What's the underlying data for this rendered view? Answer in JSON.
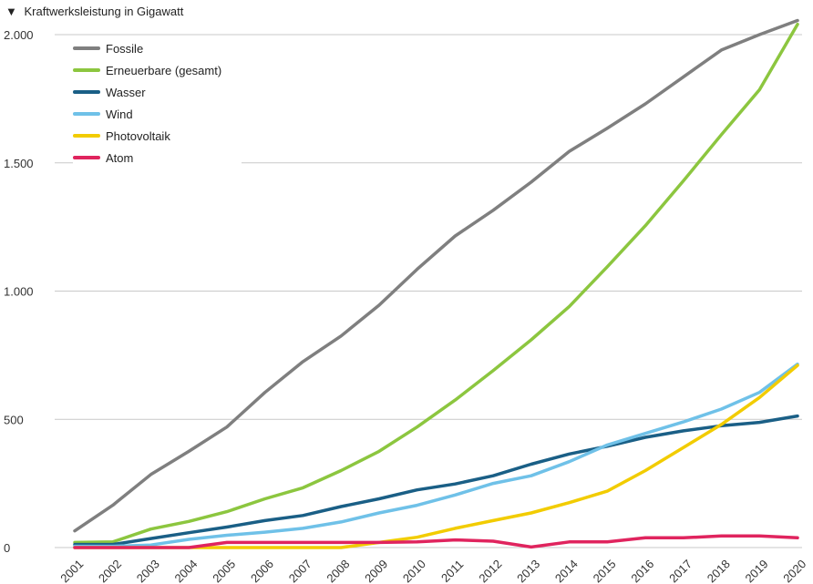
{
  "chart_data": {
    "type": "line",
    "title": "Kraftwerksleistung in Gigawatt",
    "title_marker": "▼",
    "xlabel": "",
    "ylabel": "",
    "ylim": [
      0,
      2000
    ],
    "yticks": [
      0,
      500,
      1000,
      1500,
      2000
    ],
    "ytick_labels": [
      "0",
      "500",
      "1.000",
      "1.500",
      "2.000"
    ],
    "grid": "horizontal",
    "legend_position": "top-left",
    "categories": [
      "2001",
      "2002",
      "2003",
      "2004",
      "2005",
      "2006",
      "2007",
      "2008",
      "2009",
      "2010",
      "2011",
      "2012",
      "2013",
      "2014",
      "2015",
      "2016",
      "2017",
      "2018",
      "2019",
      "2020"
    ],
    "series": [
      {
        "name": "Fossile",
        "color": "#7f7f7f",
        "values": [
          65,
          165,
          285,
          375,
          470,
          605,
          725,
          825,
          945,
          1085,
          1215,
          1315,
          1425,
          1545,
          1635,
          1730,
          1835,
          1940,
          2000,
          2055
        ]
      },
      {
        "name": "Erneuerbare (gesamt)",
        "color": "#8cc63f",
        "values": [
          20,
          22,
          72,
          102,
          140,
          190,
          233,
          300,
          375,
          470,
          575,
          690,
          810,
          940,
          1095,
          1255,
          1430,
          1610,
          1785,
          2040
        ]
      },
      {
        "name": "Wasser",
        "color": "#1a5f86",
        "values": [
          12,
          12,
          35,
          58,
          80,
          105,
          125,
          160,
          190,
          225,
          248,
          280,
          325,
          365,
          395,
          430,
          455,
          475,
          488,
          513
        ]
      },
      {
        "name": "Wind",
        "color": "#6fc1e8",
        "values": [
          5,
          5,
          10,
          32,
          48,
          60,
          75,
          100,
          135,
          165,
          205,
          250,
          280,
          335,
          400,
          445,
          490,
          540,
          605,
          715
        ]
      },
      {
        "name": "Photovoltaik",
        "color": "#f2cc00",
        "values": [
          0,
          0,
          0,
          0,
          0,
          0,
          0,
          0,
          20,
          40,
          75,
          105,
          135,
          175,
          220,
          300,
          390,
          480,
          585,
          710
        ]
      },
      {
        "name": "Atom",
        "color": "#e0245e",
        "values": [
          0,
          0,
          0,
          0,
          20,
          20,
          20,
          20,
          20,
          22,
          30,
          25,
          2,
          22,
          22,
          38,
          38,
          45,
          45,
          38
        ]
      }
    ]
  }
}
